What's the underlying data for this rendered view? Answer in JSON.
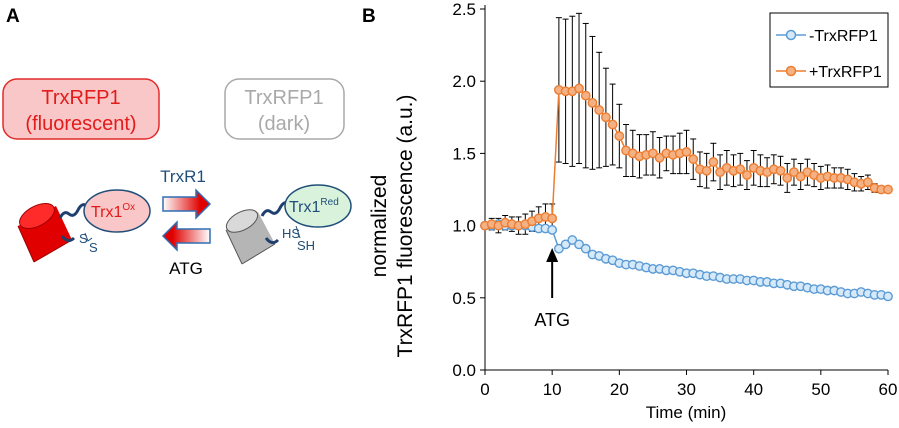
{
  "panel_a": {
    "letter": "A",
    "box_fluorescent": {
      "line1": "TrxRFP1",
      "line2": "(fluorescent)"
    },
    "box_dark": {
      "line1": "TrxRFP1",
      "line2": "(dark)"
    },
    "arrow_top_label": "TrxR1",
    "arrow_bottom_label": "ATG",
    "trx_ox": {
      "base": "Trx1",
      "sup": "Ox",
      "sulfur_1": "S",
      "sulfur_2": "S"
    },
    "trx_red": {
      "base": "Trx1",
      "sup": "Red",
      "thiol_1": "HS",
      "thiol_2": "SH"
    },
    "colors": {
      "red": "#e21b1b",
      "pink": "#f9c7c7",
      "green_fill": "#d9f2dc",
      "dark_blue": "#1f4e79",
      "gray": "#a9a9a9",
      "arrow_blue": "#2f6fb5"
    }
  },
  "panel_b": {
    "letter": "B",
    "annotation": "ATG"
  },
  "chart_data": {
    "type": "line",
    "title": "",
    "xlabel": "Time (min)",
    "ylabel_line1": "normalized",
    "ylabel_line2": "TrxRFP1 fluorescence (a.u.)",
    "xlim": [
      0,
      60
    ],
    "ylim": [
      0,
      2.5
    ],
    "xticks": [
      "0",
      "10",
      "20",
      "30",
      "40",
      "50",
      "60"
    ],
    "yticks": [
      "0.0",
      "0.5",
      "1.0",
      "1.5",
      "2.0",
      "2.5"
    ],
    "annotation": {
      "text": "ATG",
      "x": 10
    },
    "legend_position": "top-right",
    "series": [
      {
        "name": "-TrxRFP1",
        "color": "#5b9bd5",
        "fill": "#d6e9f8",
        "x": [
          0,
          1,
          2,
          3,
          4,
          5,
          6,
          7,
          8,
          9,
          10,
          11,
          12,
          13,
          14,
          15,
          16,
          17,
          18,
          19,
          20,
          21,
          22,
          23,
          24,
          25,
          26,
          27,
          28,
          29,
          30,
          31,
          32,
          33,
          34,
          35,
          36,
          37,
          38,
          39,
          40,
          41,
          42,
          43,
          44,
          45,
          46,
          47,
          48,
          49,
          50,
          51,
          52,
          53,
          54,
          55,
          56,
          57,
          58,
          59,
          60
        ],
        "values": [
          1.0,
          1.0,
          1.01,
          1.0,
          1.0,
          1.0,
          1.0,
          0.99,
          0.98,
          0.98,
          0.97,
          0.84,
          0.87,
          0.9,
          0.87,
          0.84,
          0.8,
          0.79,
          0.77,
          0.76,
          0.74,
          0.73,
          0.73,
          0.72,
          0.71,
          0.7,
          0.7,
          0.69,
          0.69,
          0.68,
          0.67,
          0.67,
          0.66,
          0.65,
          0.65,
          0.64,
          0.63,
          0.63,
          0.63,
          0.62,
          0.62,
          0.61,
          0.61,
          0.6,
          0.6,
          0.59,
          0.58,
          0.58,
          0.57,
          0.56,
          0.56,
          0.55,
          0.55,
          0.54,
          0.53,
          0.53,
          0.54,
          0.53,
          0.52,
          0.52,
          0.51
        ]
      },
      {
        "name": "+TrxRFP1",
        "color": "#ed7d31",
        "fill": "#f4b183",
        "x": [
          0,
          1,
          2,
          3,
          4,
          5,
          6,
          7,
          8,
          9,
          10,
          11,
          12,
          13,
          14,
          15,
          16,
          17,
          18,
          19,
          20,
          21,
          22,
          23,
          24,
          25,
          26,
          27,
          28,
          29,
          30,
          31,
          32,
          33,
          34,
          35,
          36,
          37,
          38,
          39,
          40,
          41,
          42,
          43,
          44,
          45,
          46,
          47,
          48,
          49,
          50,
          51,
          52,
          53,
          54,
          55,
          56,
          57,
          58,
          59,
          60
        ],
        "values": [
          1.0,
          1.01,
          1.0,
          1.02,
          1.01,
          1.0,
          1.01,
          1.03,
          1.05,
          1.06,
          1.05,
          1.94,
          1.93,
          1.93,
          1.95,
          1.9,
          1.85,
          1.8,
          1.75,
          1.7,
          1.62,
          1.52,
          1.5,
          1.48,
          1.49,
          1.5,
          1.47,
          1.5,
          1.49,
          1.5,
          1.51,
          1.46,
          1.39,
          1.38,
          1.44,
          1.37,
          1.4,
          1.38,
          1.39,
          1.35,
          1.4,
          1.38,
          1.37,
          1.39,
          1.38,
          1.33,
          1.37,
          1.34,
          1.37,
          1.35,
          1.33,
          1.34,
          1.33,
          1.33,
          1.32,
          1.3,
          1.29,
          1.3,
          1.26,
          1.25,
          1.25
        ],
        "errors": [
          0.02,
          0.04,
          0.05,
          0.05,
          0.05,
          0.06,
          0.07,
          0.07,
          0.08,
          0.09,
          0.1,
          0.5,
          0.5,
          0.52,
          0.52,
          0.5,
          0.46,
          0.4,
          0.34,
          0.28,
          0.22,
          0.18,
          0.16,
          0.15,
          0.14,
          0.15,
          0.14,
          0.12,
          0.13,
          0.14,
          0.15,
          0.14,
          0.12,
          0.12,
          0.13,
          0.12,
          0.12,
          0.11,
          0.11,
          0.1,
          0.12,
          0.11,
          0.1,
          0.1,
          0.1,
          0.1,
          0.09,
          0.09,
          0.09,
          0.08,
          0.08,
          0.08,
          0.07,
          0.07,
          0.07,
          0.06,
          0.05,
          0.05,
          0.03,
          0.02,
          0.02
        ]
      }
    ]
  }
}
